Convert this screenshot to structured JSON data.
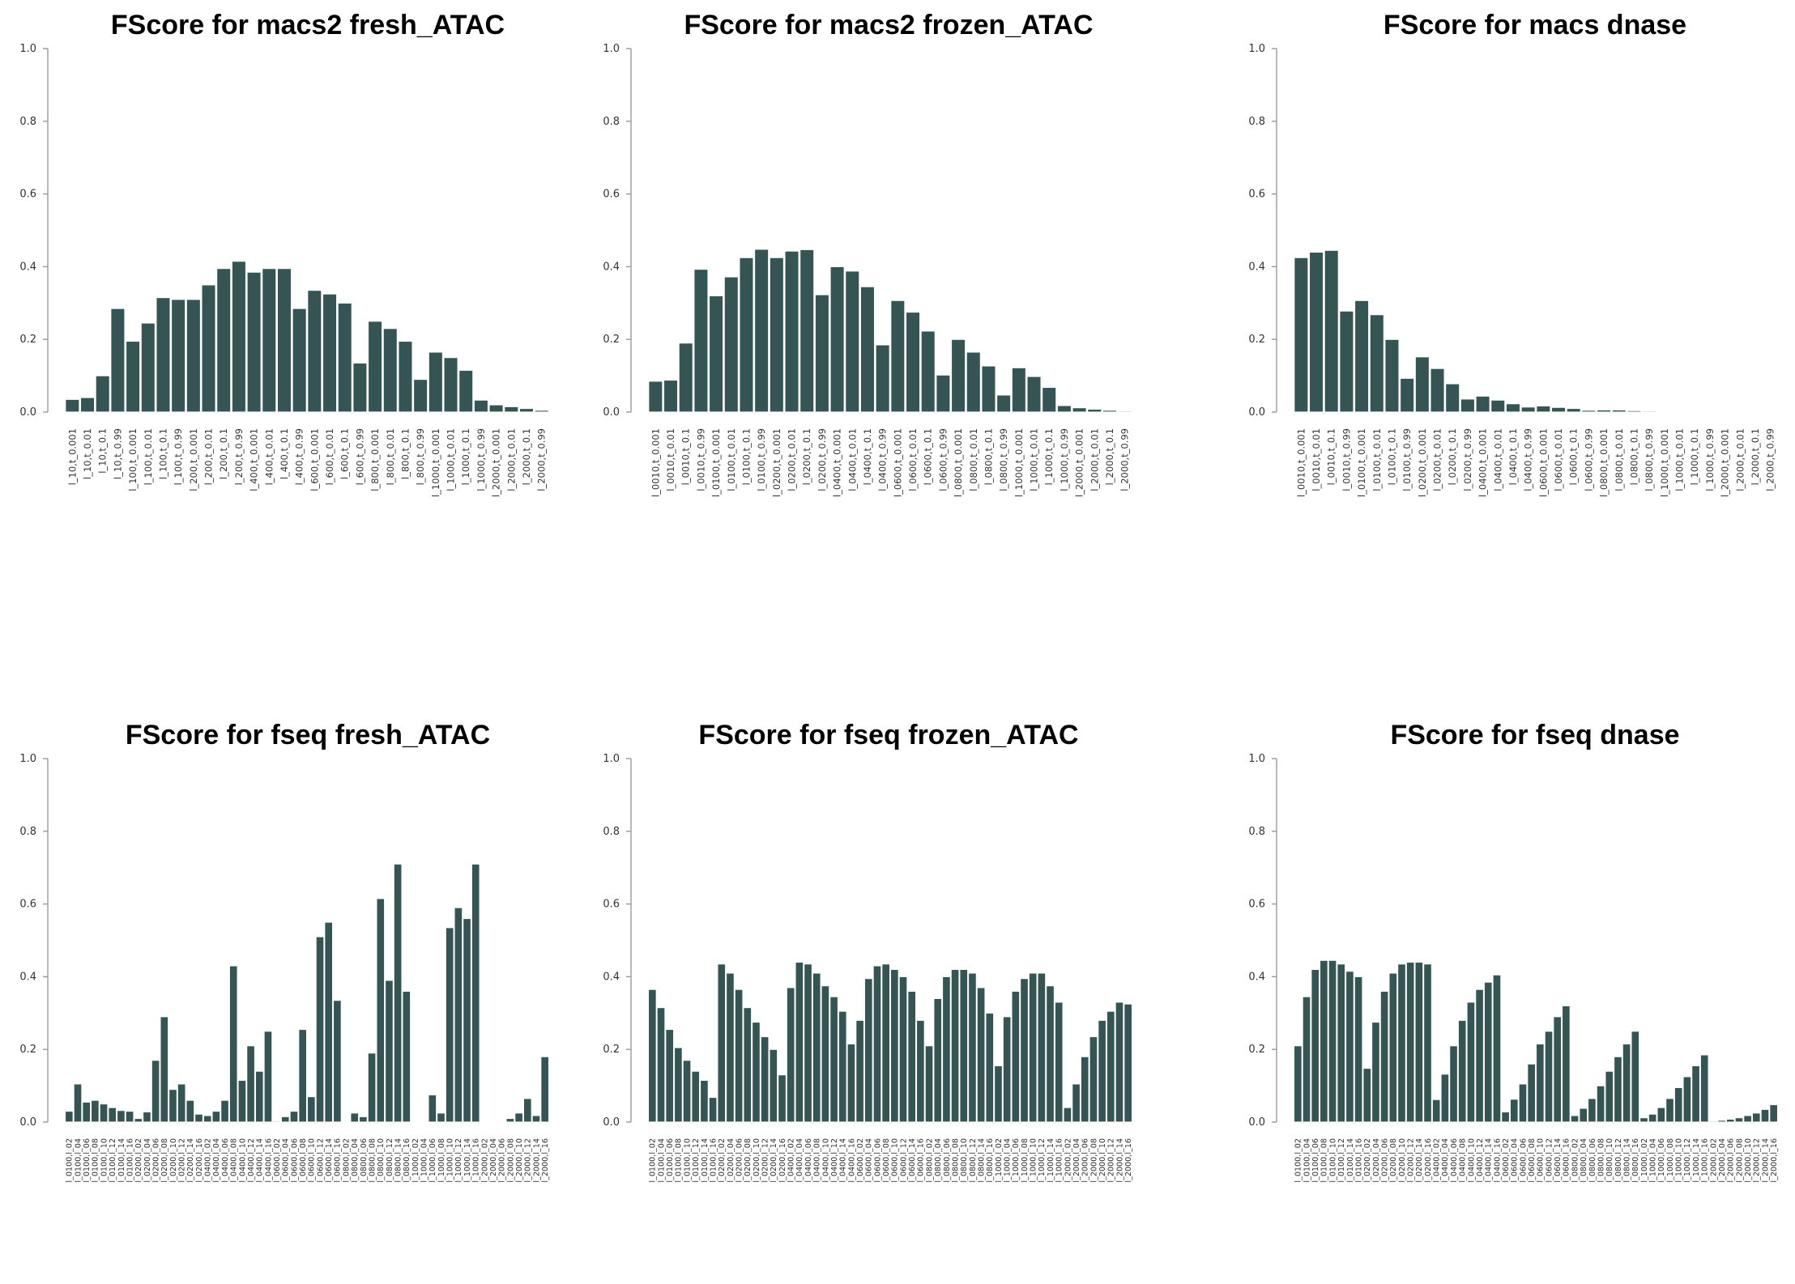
{
  "figure": {
    "bar_color": "#355555",
    "background": "#ffffff"
  },
  "chart_data": [
    {
      "type": "bar",
      "title": "FScore for  macs2 fresh_ATAC",
      "ylim": [
        0,
        1.0
      ],
      "yticks": [
        "0.0",
        "0.2",
        "0.4",
        "0.6",
        "0.8",
        "1.0"
      ],
      "categories": [
        "l_10,t_0.001",
        "l_10,t_0.01",
        "l_10,t_0.1",
        "l_10,t_0.99",
        "l_100,t_0.001",
        "l_100,t_0.01",
        "l_100,t_0.1",
        "l_100,t_0.99",
        "l_200,t_0.001",
        "l_200,t_0.01",
        "l_200,t_0.1",
        "l_200,t_0.99",
        "l_400,t_0.001",
        "l_400,t_0.01",
        "l_400,t_0.1",
        "l_400,t_0.99",
        "l_600,t_0.001",
        "l_600,t_0.01",
        "l_600,t_0.1",
        "l_600,t_0.99",
        "l_800,t_0.001",
        "l_800,t_0.01",
        "l_800,t_0.1",
        "l_800,t_0.99",
        "l_1000,t_0.001",
        "l_1000,t_0.01",
        "l_1000,t_0.1",
        "l_1000,t_0.99",
        "l_2000,t_0.001",
        "l_2000,t_0.01",
        "l_2000,t_0.1",
        "l_2000,t_0.99"
      ],
      "values": [
        0.035,
        0.04,
        0.1,
        0.285,
        0.195,
        0.245,
        0.315,
        0.31,
        0.31,
        0.35,
        0.395,
        0.415,
        0.385,
        0.395,
        0.395,
        0.285,
        0.335,
        0.325,
        0.3,
        0.135,
        0.25,
        0.23,
        0.195,
        0.09,
        0.165,
        0.15,
        0.115,
        0.033,
        0.02,
        0.015,
        0.01,
        0.005
      ]
    },
    {
      "type": "bar",
      "title": "FScore for  macs2 frozen_ATAC",
      "ylim": [
        0,
        1.0
      ],
      "yticks": [
        "0.0",
        "0.2",
        "0.4",
        "0.6",
        "0.8",
        "1.0"
      ],
      "categories": [
        "l_0010,t_0.001",
        "l_0010,t_0.01",
        "l_0010,t_0.1",
        "l_0010,t_0.99",
        "l_0100,t_0.001",
        "l_0100,t_0.01",
        "l_0100,t_0.1",
        "l_0100,t_0.99",
        "l_0200,t_0.001",
        "l_0200,t_0.01",
        "l_0200,t_0.1",
        "l_0200,t_0.99",
        "l_0400,t_0.001",
        "l_0400,t_0.01",
        "l_0400,t_0.1",
        "l_0400,t_0.99",
        "l_0600,t_0.001",
        "l_0600,t_0.01",
        "l_0600,t_0.1",
        "l_0600,t_0.99",
        "l_0800,t_0.001",
        "l_0800,t_0.01",
        "l_0800,t_0.1",
        "l_0800,t_0.99",
        "l_1000,t_0.001",
        "l_1000,t_0.01",
        "l_1000,t_0.1",
        "l_1000,t_0.99",
        "l_2000,t_0.001",
        "l_2000,t_0.01",
        "l_2000,t_0.1",
        "l_2000,t_0.99"
      ],
      "values": [
        0.085,
        0.088,
        0.19,
        0.393,
        0.32,
        0.372,
        0.425,
        0.448,
        0.425,
        0.443,
        0.447,
        0.323,
        0.4,
        0.388,
        0.345,
        0.185,
        0.307,
        0.275,
        0.223,
        0.102,
        0.2,
        0.165,
        0.127,
        0.047,
        0.122,
        0.098,
        0.068,
        0.018,
        0.012,
        0.008,
        0.005,
        0.003
      ]
    },
    {
      "type": "bar",
      "title": "FScore for  macs dnase",
      "ylim": [
        0,
        1.0
      ],
      "yticks": [
        "0.0",
        "0.2",
        "0.4",
        "0.6",
        "0.8",
        "1.0"
      ],
      "categories": [
        "l_0010,t_0.001",
        "l_0010,t_0.01",
        "l_0010,t_0.1",
        "l_0010,t_0.99",
        "l_0100,t_0.001",
        "l_0100,t_0.01",
        "l_0100,t_0.1",
        "l_0100,t_0.99",
        "l_0200,t_0.001",
        "l_0200,t_0.01",
        "l_0200,t_0.1",
        "l_0200,t_0.99",
        "l_0400,t_0.001",
        "l_0400,t_0.01",
        "l_0400,t_0.1",
        "l_0400,t_0.99",
        "l_0600,t_0.001",
        "l_0600,t_0.01",
        "l_0600,t_0.1",
        "l_0600,t_0.99",
        "l_0800,t_0.001",
        "l_0800,t_0.01",
        "l_0800,t_0.1",
        "l_0800,t_0.99",
        "l_1000,t_0.001",
        "l_1000,t_0.01",
        "l_1000,t_0.1",
        "l_1000,t_0.99",
        "l_2000,t_0.001",
        "l_2000,t_0.01",
        "l_2000,t_0.1",
        "l_2000,t_0.99"
      ],
      "values": [
        0.425,
        0.44,
        0.445,
        0.278,
        0.307,
        0.268,
        0.2,
        0.093,
        0.152,
        0.12,
        0.078,
        0.036,
        0.044,
        0.033,
        0.023,
        0.014,
        0.017,
        0.013,
        0.01,
        0.005,
        0.006,
        0.006,
        0.004,
        0.003,
        0.002,
        0.002,
        0.002,
        0.002,
        0.001,
        0.001,
        0.001,
        0.001
      ]
    },
    {
      "type": "bar",
      "title": "FScore for  fseq fresh_ATAC",
      "ylim": [
        0,
        1.0
      ],
      "yticks": [
        "0.0",
        "0.2",
        "0.4",
        "0.6",
        "0.8",
        "1.0"
      ],
      "categories": [
        "l_0100,l_02",
        "l_0100,l_04",
        "l_0100,l_06",
        "l_0100,l_08",
        "l_0100,l_10",
        "l_0100,l_12",
        "l_0100,l_14",
        "l_0100,l_16",
        "l_0200,l_02",
        "l_0200,l_04",
        "l_0200,l_06",
        "l_0200,l_08",
        "l_0200,l_10",
        "l_0200,l_12",
        "l_0200,l_14",
        "l_0200,l_16",
        "l_0400,l_02",
        "l_0400,l_04",
        "l_0400,l_06",
        "l_0400,l_08",
        "l_0400,l_10",
        "l_0400,l_12",
        "l_0400,l_14",
        "l_0400,l_16",
        "l_0600,l_02",
        "l_0600,l_04",
        "l_0600,l_06",
        "l_0600,l_08",
        "l_0600,l_10",
        "l_0600,l_12",
        "l_0600,l_14",
        "l_0600,l_16",
        "l_0800,l_02",
        "l_0800,l_04",
        "l_0800,l_06",
        "l_0800,l_08",
        "l_0800,l_10",
        "l_0800,l_12",
        "l_0800,l_14",
        "l_0800,l_16",
        "l_1000,l_02",
        "l_1000,l_04",
        "l_1000,l_06",
        "l_1000,l_08",
        "l_1000,l_10",
        "l_1000,l_12",
        "l_1000,l_14",
        "l_1000,l_16",
        "l_2000,l_02",
        "l_2000,l_04",
        "l_2000,l_06",
        "l_2000,l_08",
        "l_2000,l_10",
        "l_2000,l_12",
        "l_2000,l_14",
        "l_2000,l_16"
      ],
      "values": [
        0.03,
        0.105,
        0.055,
        0.06,
        0.05,
        0.04,
        0.032,
        0.03,
        0.01,
        0.028,
        0.17,
        0.29,
        0.09,
        0.105,
        0.06,
        0.022,
        0.018,
        0.03,
        0.06,
        0.43,
        0.115,
        0.21,
        0.14,
        0.25,
        0.003,
        0.015,
        0.03,
        0.255,
        0.07,
        0.51,
        0.55,
        0.335,
        0.002,
        0.025,
        0.015,
        0.19,
        0.615,
        0.39,
        0.71,
        0.36,
        0.002,
        0.002,
        0.075,
        0.025,
        0.535,
        0.59,
        0.56,
        0.71,
        0.002,
        0.002,
        0.002,
        0.01,
        0.025,
        0.065,
        0.018,
        0.18
      ]
    },
    {
      "type": "bar",
      "title": "FScore for  fseq frozen_ATAC",
      "ylim": [
        0,
        1.0
      ],
      "yticks": [
        "0.0",
        "0.2",
        "0.4",
        "0.6",
        "0.8",
        "1.0"
      ],
      "categories": [
        "l_0100,l_02",
        "l_0100,l_04",
        "l_0100,l_06",
        "l_0100,l_08",
        "l_0100,l_10",
        "l_0100,l_12",
        "l_0100,l_14",
        "l_0100,l_16",
        "l_0200,l_02",
        "l_0200,l_04",
        "l_0200,l_06",
        "l_0200,l_08",
        "l_0200,l_10",
        "l_0200,l_12",
        "l_0200,l_14",
        "l_0200,l_16",
        "l_0400,l_02",
        "l_0400,l_04",
        "l_0400,l_06",
        "l_0400,l_08",
        "l_0400,l_10",
        "l_0400,l_12",
        "l_0400,l_14",
        "l_0400,l_16",
        "l_0600,l_02",
        "l_0600,l_04",
        "l_0600,l_06",
        "l_0600,l_08",
        "l_0600,l_10",
        "l_0600,l_12",
        "l_0600,l_14",
        "l_0600,l_16",
        "l_0800,l_02",
        "l_0800,l_04",
        "l_0800,l_06",
        "l_0800,l_08",
        "l_0800,l_10",
        "l_0800,l_12",
        "l_0800,l_14",
        "l_0800,l_16",
        "l_1000,l_02",
        "l_1000,l_04",
        "l_1000,l_06",
        "l_1000,l_08",
        "l_1000,l_10",
        "l_1000,l_12",
        "l_1000,l_14",
        "l_1000,l_16",
        "l_2000,l_02",
        "l_2000,l_04",
        "l_2000,l_06",
        "l_2000,l_08",
        "l_2000,l_10",
        "l_2000,l_12",
        "l_2000,l_14",
        "l_2000,l_16"
      ],
      "values": [
        0.365,
        0.315,
        0.255,
        0.205,
        0.17,
        0.14,
        0.115,
        0.068,
        0.435,
        0.41,
        0.365,
        0.315,
        0.275,
        0.235,
        0.2,
        0.13,
        0.37,
        0.44,
        0.435,
        0.41,
        0.375,
        0.345,
        0.305,
        0.215,
        0.28,
        0.395,
        0.43,
        0.435,
        0.42,
        0.4,
        0.36,
        0.28,
        0.21,
        0.34,
        0.4,
        0.42,
        0.42,
        0.41,
        0.37,
        0.3,
        0.155,
        0.29,
        0.36,
        0.395,
        0.41,
        0.41,
        0.375,
        0.33,
        0.04,
        0.105,
        0.18,
        0.235,
        0.28,
        0.305,
        0.33,
        0.325
      ]
    },
    {
      "type": "bar",
      "title": "FScore for  fseq dnase",
      "ylim": [
        0,
        1.0
      ],
      "yticks": [
        "0.0",
        "0.2",
        "0.4",
        "0.6",
        "0.8",
        "1.0"
      ],
      "categories": [
        "l_0100,l_02",
        "l_0100,l_04",
        "l_0100,l_06",
        "l_0100,l_08",
        "l_0100,l_10",
        "l_0100,l_12",
        "l_0100,l_14",
        "l_0100,l_16",
        "l_0200,l_02",
        "l_0200,l_04",
        "l_0200,l_06",
        "l_0200,l_08",
        "l_0200,l_10",
        "l_0200,l_12",
        "l_0200,l_14",
        "l_0200,l_16",
        "l_0400,l_02",
        "l_0400,l_04",
        "l_0400,l_06",
        "l_0400,l_08",
        "l_0400,l_10",
        "l_0400,l_12",
        "l_0400,l_14",
        "l_0400,l_16",
        "l_0600,l_02",
        "l_0600,l_04",
        "l_0600,l_06",
        "l_0600,l_08",
        "l_0600,l_10",
        "l_0600,l_12",
        "l_0600,l_14",
        "l_0600,l_16",
        "l_0800,l_02",
        "l_0800,l_04",
        "l_0800,l_06",
        "l_0800,l_08",
        "l_0800,l_10",
        "l_0800,l_12",
        "l_0800,l_14",
        "l_0800,l_16",
        "l_1000,l_02",
        "l_1000,l_04",
        "l_1000,l_06",
        "l_1000,l_08",
        "l_1000,l_10",
        "l_1000,l_12",
        "l_1000,l_14",
        "l_1000,l_16",
        "l_2000,l_02",
        "l_2000,l_04",
        "l_2000,l_06",
        "l_2000,l_08",
        "l_2000,l_10",
        "l_2000,l_12",
        "l_2000,l_14",
        "l_2000,l_16"
      ],
      "values": [
        0.21,
        0.345,
        0.42,
        0.445,
        0.445,
        0.435,
        0.415,
        0.4,
        0.148,
        0.275,
        0.36,
        0.41,
        0.435,
        0.44,
        0.44,
        0.435,
        0.062,
        0.132,
        0.21,
        0.28,
        0.33,
        0.365,
        0.385,
        0.405,
        0.028,
        0.063,
        0.105,
        0.16,
        0.215,
        0.25,
        0.29,
        0.32,
        0.018,
        0.038,
        0.065,
        0.1,
        0.14,
        0.18,
        0.215,
        0.25,
        0.012,
        0.022,
        0.04,
        0.065,
        0.095,
        0.125,
        0.155,
        0.185,
        0.003,
        0.005,
        0.008,
        0.012,
        0.018,
        0.025,
        0.035,
        0.048
      ]
    }
  ]
}
